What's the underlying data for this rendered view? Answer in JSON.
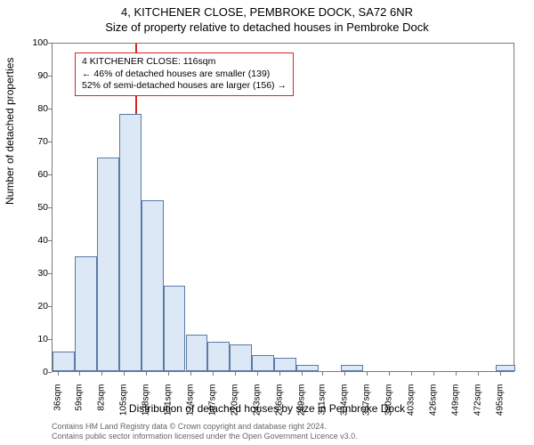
{
  "chart": {
    "type": "histogram",
    "title_line1": "4, KITCHENER CLOSE, PEMBROKE DOCK, SA72 6NR",
    "title_line2": "Size of property relative to detached houses in Pembroke Dock",
    "ylabel": "Number of detached properties",
    "xlabel": "Distribution of detached houses by size in Pembroke Dock",
    "xlim": [
      30,
      510
    ],
    "ylim": [
      0,
      100
    ],
    "ytick_step": 10,
    "yticks": [
      0,
      10,
      20,
      30,
      40,
      50,
      60,
      70,
      80,
      90,
      100
    ],
    "xticks": [
      36,
      59,
      82,
      105,
      128,
      151,
      174,
      197,
      220,
      243,
      266,
      289,
      311,
      334,
      357,
      380,
      403,
      426,
      449,
      472,
      495
    ],
    "xtick_suffix": "sqm",
    "bin_edges": [
      30,
      53,
      76,
      99,
      122,
      145,
      168,
      191,
      214,
      237,
      260,
      283,
      306,
      329,
      352,
      375,
      398,
      421,
      444,
      467,
      490,
      510
    ],
    "counts": [
      6,
      35,
      65,
      78,
      52,
      26,
      11,
      9,
      8,
      5,
      4,
      2,
      0,
      2,
      0,
      0,
      0,
      0,
      0,
      0,
      2
    ],
    "bar_fill": "#dce8f5",
    "bar_stroke": "#5b7aa5",
    "ref_line_x": 116,
    "ref_line_color": "#d62728",
    "annot": {
      "lines": [
        "4 KITCHENER CLOSE: 116sqm",
        "← 46% of detached houses are smaller (139)",
        "52% of semi-detached houses are larger (156) →"
      ]
    },
    "background_color": "#ffffff",
    "border_color": "#7a7a7a",
    "title_fontsize": 13,
    "label_fontsize": 12,
    "tick_fontsize": 10.5
  },
  "footer": {
    "line1": "Contains HM Land Registry data © Crown copyright and database right 2024.",
    "line2": "Contains public sector information licensed under the Open Government Licence v3.0."
  }
}
